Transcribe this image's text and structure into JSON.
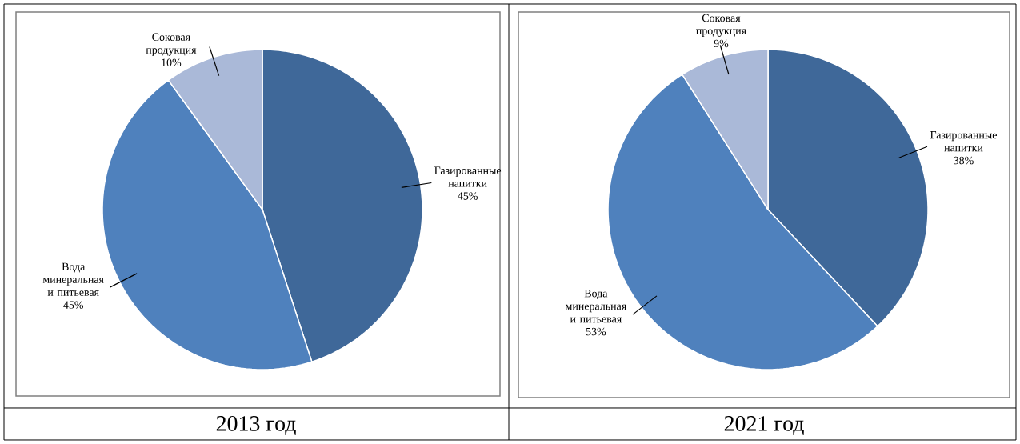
{
  "chart_data": [
    {
      "type": "pie",
      "title": "2013 год",
      "categories": [
        "Газированные напитки",
        "Вода минеральная и питьевая",
        "Соковая продукция"
      ],
      "values": [
        45,
        45,
        10
      ],
      "value_labels": [
        "45%",
        "45%",
        "10%"
      ],
      "colors": [
        "#3f6899",
        "#4f81bd",
        "#aab9d8"
      ]
    },
    {
      "type": "pie",
      "title": "2021 год",
      "categories": [
        "Газированные напитки",
        "Вода минеральная и питьевая",
        "Соковая продукция"
      ],
      "values": [
        38,
        53,
        9
      ],
      "value_labels": [
        "38%",
        "53%",
        "9%"
      ],
      "colors": [
        "#3f6899",
        "#4f81bd",
        "#aab9d8"
      ]
    }
  ]
}
